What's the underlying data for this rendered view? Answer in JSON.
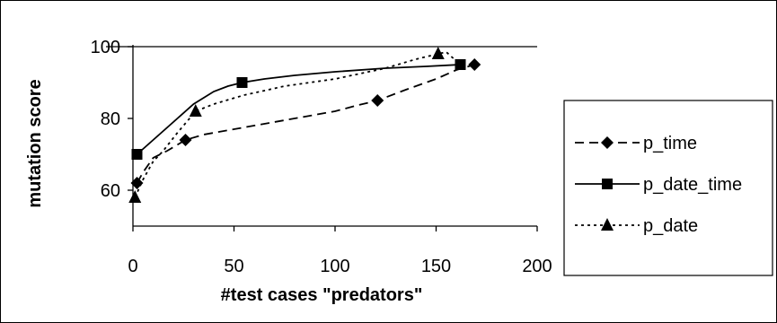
{
  "chart_data": {
    "type": "line",
    "title": "",
    "xlabel": "#test cases \"predators\"",
    "ylabel": "mutation score",
    "xlim": [
      0,
      200
    ],
    "ylim": [
      50,
      100
    ],
    "x_ticks": [
      "0",
      "50",
      "100",
      "150",
      "200"
    ],
    "y_ticks": [
      "60",
      "80",
      "100"
    ],
    "grid": false,
    "legend_position": "right",
    "series": [
      {
        "name": "p_time",
        "style": "dashed",
        "marker": "diamond",
        "x": [
          2,
          26,
          121,
          169
        ],
        "y": [
          62,
          74,
          85,
          95
        ],
        "curve": [
          [
            2,
            62
          ],
          [
            5,
            65
          ],
          [
            10,
            69
          ],
          [
            17,
            71
          ],
          [
            26,
            74
          ],
          [
            35,
            75.5
          ],
          [
            50,
            77
          ],
          [
            70,
            79
          ],
          [
            90,
            81
          ],
          [
            100,
            82
          ],
          [
            110,
            83.5
          ],
          [
            121,
            85
          ],
          [
            135,
            88
          ],
          [
            150,
            91
          ],
          [
            160,
            93.5
          ],
          [
            169,
            95
          ]
        ]
      },
      {
        "name": "p_date_time",
        "style": "solid",
        "marker": "square",
        "x": [
          2,
          54,
          162
        ],
        "y": [
          70,
          90,
          95
        ],
        "curve": [
          [
            2,
            70
          ],
          [
            10,
            74
          ],
          [
            20,
            79
          ],
          [
            30,
            84
          ],
          [
            40,
            87.5
          ],
          [
            47,
            89
          ],
          [
            54,
            90
          ],
          [
            65,
            91
          ],
          [
            80,
            92
          ],
          [
            100,
            93
          ],
          [
            125,
            94
          ],
          [
            145,
            94.5
          ],
          [
            162,
            95
          ]
        ]
      },
      {
        "name": "p_date",
        "style": "dotted",
        "marker": "triangle",
        "x": [
          1,
          31,
          151
        ],
        "y": [
          58,
          82,
          98
        ],
        "curve": [
          [
            1,
            58
          ],
          [
            5,
            63
          ],
          [
            10,
            68
          ],
          [
            15,
            71
          ],
          [
            22,
            76
          ],
          [
            31,
            82
          ],
          [
            40,
            84
          ],
          [
            55,
            86.5
          ],
          [
            75,
            89
          ],
          [
            100,
            91
          ],
          [
            125,
            94
          ],
          [
            140,
            96.5
          ],
          [
            151,
            98
          ],
          [
            155,
            98.5
          ],
          [
            160,
            96
          ]
        ]
      }
    ],
    "reference_line": {
      "y": 100
    }
  },
  "colors": {
    "line": "#000000",
    "background": "#ffffff"
  }
}
